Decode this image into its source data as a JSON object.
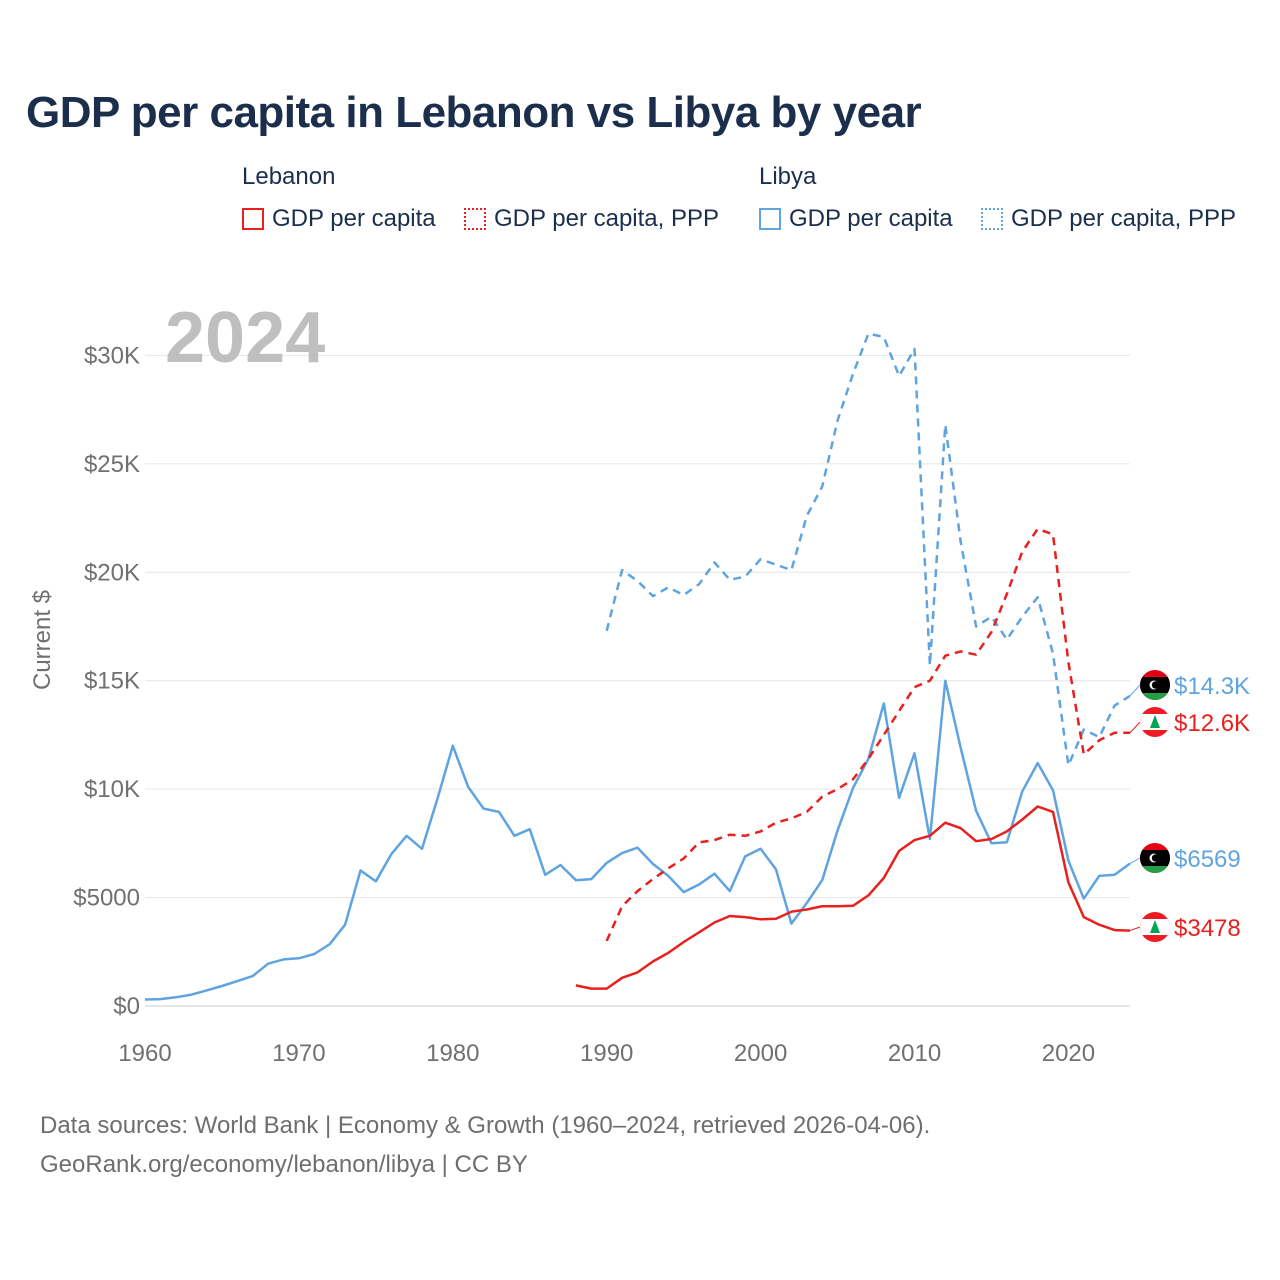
{
  "title": "GDP per capita in Lebanon vs Libya by year",
  "legend": {
    "groups": [
      {
        "country": "Lebanon",
        "color": "#e8201e",
        "items": [
          {
            "label": "GDP per capita",
            "style": "solid"
          },
          {
            "label": "GDP per capita, PPP",
            "style": "dotted"
          }
        ]
      },
      {
        "country": "Libya",
        "color": "#5fa4e0",
        "items": [
          {
            "label": "GDP per capita",
            "style": "solid"
          },
          {
            "label": "GDP per capita, PPP",
            "style": "dotted"
          }
        ]
      }
    ]
  },
  "footer": {
    "line1": "Data sources: World Bank | Economy & Growth (1960–2024, retrieved 2026-04-06).",
    "line2": "GeoRank.org/economy/lebanon/libya | CC BY"
  },
  "chart_data": {
    "type": "line",
    "title": "GDP per capita in Lebanon vs Libya by year",
    "year_label": "2024",
    "xlabel": "",
    "ylabel": "Current $",
    "xlim": [
      1960,
      2024
    ],
    "ylim": [
      0,
      32000
    ],
    "x_ticks": [
      1960,
      1970,
      1980,
      1990,
      2000,
      2010,
      2020
    ],
    "x_tick_labels": [
      "1960",
      "1970",
      "1980",
      "1990",
      "2000",
      "2010",
      "2020"
    ],
    "y_ticks": [
      0,
      5000,
      10000,
      15000,
      20000,
      25000,
      30000
    ],
    "y_tick_labels": [
      "$0",
      "$5000",
      "$10K",
      "$15K",
      "$20K",
      "$25K",
      "$30K"
    ],
    "grid": true,
    "series": [
      {
        "name": "Libya GDP per capita",
        "country": "Libya",
        "color": "#5fa4e0",
        "dash": "solid",
        "end_label": "$6569",
        "x": [
          1960,
          1961,
          1962,
          1963,
          1964,
          1965,
          1966,
          1967,
          1968,
          1969,
          1970,
          1971,
          1972,
          1973,
          1974,
          1975,
          1976,
          1977,
          1978,
          1979,
          1980,
          1981,
          1982,
          1983,
          1984,
          1985,
          1986,
          1987,
          1988,
          1989,
          1990,
          1991,
          1992,
          1993,
          1994,
          1995,
          1996,
          1997,
          1998,
          1999,
          2000,
          2001,
          2002,
          2003,
          2004,
          2005,
          2006,
          2007,
          2008,
          2009,
          2010,
          2011,
          2012,
          2013,
          2014,
          2015,
          2016,
          2017,
          2018,
          2019,
          2020,
          2021,
          2022,
          2023,
          2024
        ],
        "values": [
          300,
          320,
          400,
          520,
          720,
          920,
          1150,
          1380,
          1950,
          2150,
          2200,
          2400,
          2850,
          3750,
          6250,
          5750,
          7000,
          7850,
          7250,
          9550,
          12000,
          10100,
          9100,
          8950,
          7850,
          8150,
          6050,
          6500,
          5800,
          5850,
          6600,
          7050,
          7300,
          6550,
          6000,
          5250,
          5600,
          6100,
          5300,
          6900,
          7250,
          6300,
          3800,
          4750,
          5800,
          8100,
          10050,
          11400,
          13950,
          9600,
          11650,
          7700,
          15000,
          11900,
          9000,
          7500,
          7550,
          9900,
          11200,
          9950,
          6700,
          4950,
          6000,
          6050,
          6569
        ]
      },
      {
        "name": "Libya GDP per capita, PPP",
        "country": "Libya",
        "color": "#5fa4e0",
        "dash": "dashed",
        "end_label": "$14.3K",
        "x": [
          1990,
          1991,
          1992,
          1993,
          1994,
          1995,
          1996,
          1997,
          1998,
          1999,
          2000,
          2001,
          2002,
          2003,
          2004,
          2005,
          2006,
          2007,
          2008,
          2009,
          2010,
          2011,
          2012,
          2013,
          2014,
          2015,
          2016,
          2017,
          2018,
          2019,
          2020,
          2021,
          2022,
          2023,
          2024
        ],
        "values": [
          17300,
          20100,
          19600,
          18900,
          19300,
          18950,
          19450,
          20450,
          19650,
          19800,
          20600,
          20350,
          20100,
          22600,
          23950,
          27000,
          29150,
          31000,
          30850,
          29050,
          30300,
          15700,
          26800,
          21400,
          17500,
          17950,
          16900,
          17950,
          18850,
          16250,
          11100,
          12750,
          12400,
          13850,
          14300
        ]
      },
      {
        "name": "Lebanon GDP per capita",
        "country": "Lebanon",
        "color": "#e8201e",
        "dash": "solid",
        "end_label": "$3478",
        "x": [
          1988,
          1989,
          1990,
          1991,
          1992,
          1993,
          1994,
          1995,
          1996,
          1997,
          1998,
          1999,
          2000,
          2001,
          2002,
          2003,
          2004,
          2005,
          2006,
          2007,
          2008,
          2009,
          2010,
          2011,
          2012,
          2013,
          2014,
          2015,
          2016,
          2017,
          2018,
          2019,
          2020,
          2021,
          2022,
          2023,
          2024
        ],
        "values": [
          950,
          800,
          800,
          1300,
          1550,
          2050,
          2450,
          2950,
          3400,
          3850,
          4150,
          4100,
          4000,
          4020,
          4350,
          4450,
          4600,
          4600,
          4620,
          5100,
          5900,
          7150,
          7650,
          7850,
          8450,
          8200,
          7600,
          7700,
          8050,
          8600,
          9200,
          8950,
          5700,
          4100,
          3750,
          3500,
          3478
        ]
      },
      {
        "name": "Lebanon GDP per capita, PPP",
        "country": "Lebanon",
        "color": "#e8201e",
        "dash": "dashed",
        "end_label": "$12.6K",
        "x": [
          1990,
          1991,
          1992,
          1993,
          1994,
          1995,
          1996,
          1997,
          1998,
          1999,
          2000,
          2001,
          2002,
          2003,
          2004,
          2005,
          2006,
          2007,
          2008,
          2009,
          2010,
          2011,
          2012,
          2013,
          2014,
          2015,
          2016,
          2017,
          2018,
          2019,
          2020,
          2021,
          2022,
          2023,
          2024
        ],
        "values": [
          3000,
          4600,
          5300,
          5850,
          6350,
          6800,
          7550,
          7650,
          7900,
          7850,
          8050,
          8450,
          8650,
          8950,
          9650,
          10000,
          10450,
          11400,
          12500,
          13600,
          14700,
          15000,
          16150,
          16350,
          16200,
          17250,
          19000,
          20950,
          22000,
          21750,
          15850,
          11600,
          12250,
          12600,
          12600
        ]
      }
    ]
  }
}
